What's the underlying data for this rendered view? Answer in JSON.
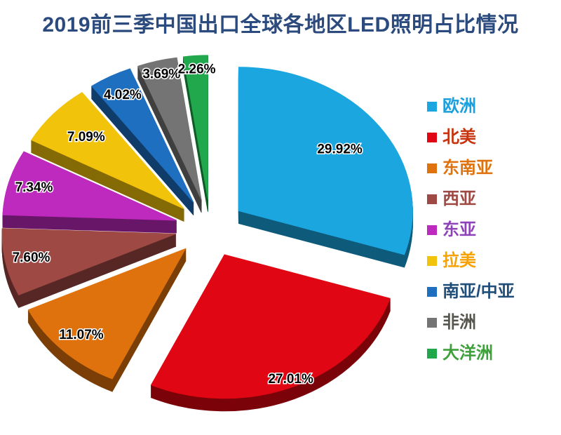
{
  "title": "2019前三季中国出口全球各地区LED照明占比情况",
  "colors": {
    "title": "#2B4A7D",
    "background": "#FFFFFF",
    "slice_label_text": "#000000",
    "slice_label_halo": "#FFFFFF"
  },
  "chart_data": {
    "type": "pie",
    "style": "3d-exploded",
    "title": "2019前三季中国出口全球各地区LED照明占比情况",
    "unit": "percent",
    "total": 100,
    "start_angle_deg": 0,
    "direction": "clockwise",
    "legend_position": "right",
    "grid": false,
    "series": [
      {
        "name": "欧洲",
        "value": 29.92,
        "label": "29.92%",
        "color": "#1BA6E0",
        "legend_text_color": "#1BA0DF"
      },
      {
        "name": "北美",
        "value": 27.01,
        "label": "27.01%",
        "color": "#E00613",
        "legend_text_color": "#C8330E"
      },
      {
        "name": "东南亚",
        "value": 11.07,
        "label": "11.07%",
        "color": "#DF720D",
        "legend_text_color": "#DF720D"
      },
      {
        "name": "西亚",
        "value": 7.6,
        "label": "7.60%",
        "color": "#9E4944",
        "legend_text_color": "#9E4944"
      },
      {
        "name": "东亚",
        "value": 7.34,
        "label": "7.34%",
        "color": "#BE29BE",
        "legend_text_color": "#8F43B8"
      },
      {
        "name": "拉美",
        "value": 7.09,
        "label": "7.09%",
        "color": "#F2C30B",
        "legend_text_color": "#F7A200"
      },
      {
        "name": "南亚/中亚",
        "value": 4.02,
        "label": "4.02%",
        "color": "#1E6FC0",
        "legend_text_color": "#1F4E79"
      },
      {
        "name": "非洲",
        "value": 3.69,
        "label": "3.69%",
        "color": "#747474",
        "legend_text_color": "#56564E"
      },
      {
        "name": "大洋洲",
        "value": 2.26,
        "label": "2.26%",
        "color": "#21A84C",
        "legend_text_color": "#3DA03A"
      }
    ]
  }
}
